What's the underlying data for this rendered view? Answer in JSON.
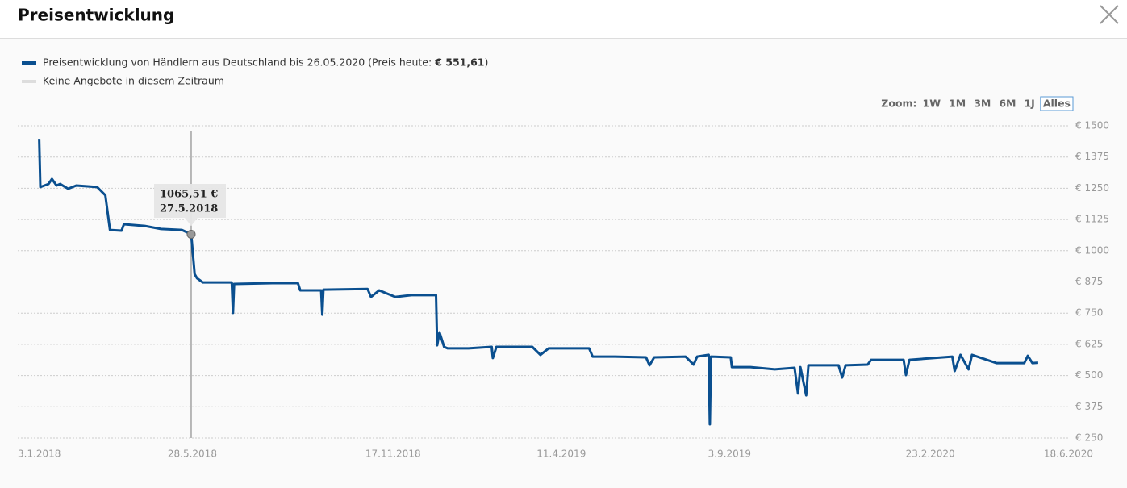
{
  "header": {
    "title": "Preisentwicklung"
  },
  "chart_data": {
    "type": "line",
    "legend": [
      {
        "name": "Preisentwicklung von Händlern aus Deutschland bis 26.05.2020 (Preis heute:",
        "price_label": "€ 551,61",
        "suffix": ")",
        "color": "#0a4f8f"
      },
      {
        "name": "Keine Angebote in diesem Zeitraum",
        "color": "#dddddd"
      }
    ],
    "zoom": {
      "label": "Zoom:",
      "buttons": [
        "1W",
        "1M",
        "3M",
        "6M",
        "1J",
        "Alles"
      ],
      "selected": 5
    },
    "x": [
      "2018-01-16",
      "2018-01-17",
      "2018-01-24",
      "2018-01-27",
      "2018-01-31",
      "2018-02-03",
      "2018-02-10",
      "2018-02-17",
      "2018-03-07",
      "2018-03-14",
      "2018-03-18",
      "2018-03-28",
      "2018-03-30",
      "2018-04-17",
      "2018-05-01",
      "2018-05-19",
      "2018-05-27",
      "2018-05-30",
      "2018-06-01",
      "2018-06-06",
      "2018-07-01",
      "2018-07-02",
      "2018-07-03",
      "2018-08-05",
      "2018-08-27",
      "2018-08-29",
      "2018-09-16",
      "2018-09-17",
      "2018-09-18",
      "2018-10-26",
      "2018-10-29",
      "2018-11-05",
      "2018-11-19",
      "2018-12-03",
      "2018-12-24",
      "2018-12-25",
      "2018-12-27",
      "2018-12-31",
      "2019-01-03",
      "2019-01-21",
      "2019-02-10",
      "2019-02-11",
      "2019-02-14",
      "2019-03-17",
      "2019-03-24",
      "2019-03-31",
      "2019-04-14",
      "2019-05-05",
      "2019-05-08",
      "2019-05-26",
      "2019-06-23",
      "2019-06-26",
      "2019-06-30",
      "2019-07-27",
      "2019-08-03",
      "2019-08-06",
      "2019-08-16",
      "2019-08-17",
      "2019-08-18",
      "2019-09-04",
      "2019-09-05",
      "2019-09-21",
      "2019-10-12",
      "2019-10-29",
      "2019-11-01",
      "2019-11-03",
      "2019-11-08",
      "2019-11-10",
      "2019-12-06",
      "2019-12-09",
      "2019-12-12",
      "2019-12-31",
      "2020-01-03",
      "2020-01-31",
      "2020-02-02",
      "2020-02-05",
      "2020-03-13",
      "2020-03-15",
      "2020-03-20",
      "2020-03-27",
      "2020-03-30",
      "2020-04-20",
      "2020-05-14",
      "2020-05-17",
      "2020-05-21",
      "2020-05-26"
    ],
    "series": [
      {
        "name": "Preisentwicklung",
        "color": "#0a4f8f",
        "values": [
          1448,
          1255,
          1267,
          1287,
          1261,
          1267,
          1248,
          1261,
          1255,
          1222,
          1083,
          1080,
          1106,
          1099,
          1087,
          1083,
          1065.51,
          906,
          890,
          873,
          873,
          751,
          867,
          870,
          870,
          841,
          841,
          744,
          844,
          847,
          815,
          841,
          815,
          822,
          822,
          621,
          673,
          615,
          609,
          609,
          615,
          570,
          615,
          615,
          583,
          609,
          609,
          609,
          576,
          576,
          573,
          541,
          573,
          576,
          544,
          576,
          583,
          305,
          576,
          573,
          534,
          534,
          525,
          531,
          428,
          534,
          421,
          541,
          541,
          492,
          541,
          544,
          563,
          563,
          502,
          563,
          576,
          518,
          583,
          525,
          583,
          550,
          550,
          579,
          550,
          551.61
        ]
      }
    ],
    "tooltip": {
      "x": "2018-05-27",
      "value": 1065.51,
      "value_label": "1065,51 €",
      "x_label": "27.5.2018"
    },
    "xlim": [
      "2018-01-01",
      "2020-06-18"
    ],
    "xticks": [
      {
        "value": "2018-01-03",
        "label": "3.1.2018"
      },
      {
        "value": "2018-05-28",
        "label": "28.5.2018"
      },
      {
        "value": "2018-11-17",
        "label": "17.11.2018"
      },
      {
        "value": "2019-04-11",
        "label": "11.4.2019"
      },
      {
        "value": "2019-09-03",
        "label": "3.9.2019"
      },
      {
        "value": "2020-02-23",
        "label": "23.2.2020"
      },
      {
        "value": "2020-06-18",
        "label": "18.6.2020"
      }
    ],
    "ylim": [
      250,
      1500
    ],
    "yticks": [
      {
        "value": 1500,
        "label": "€ 1500"
      },
      {
        "value": 1375,
        "label": "€ 1375"
      },
      {
        "value": 1250,
        "label": "€ 1250"
      },
      {
        "value": 1125,
        "label": "€ 1125"
      },
      {
        "value": 1000,
        "label": "€ 1000"
      },
      {
        "value": 875,
        "label": "€ 875"
      },
      {
        "value": 750,
        "label": "€ 750"
      },
      {
        "value": 625,
        "label": "€ 625"
      },
      {
        "value": 500,
        "label": "€ 500"
      },
      {
        "value": 375,
        "label": "€ 375"
      },
      {
        "value": 250,
        "label": "€ 250"
      }
    ],
    "grid": true
  }
}
